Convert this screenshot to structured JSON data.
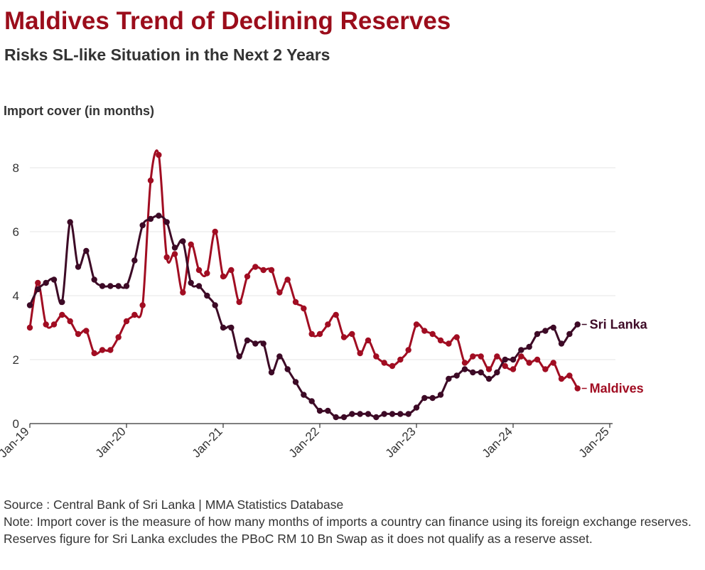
{
  "header": {
    "title": "Maldives Trend of Declining Reserves",
    "subtitle": "Risks SL-like Situation in the Next 2 Years"
  },
  "footer": {
    "source": "Source : Central Bank of Sri Lanka | MMA Statistics Database",
    "note": "Note: Import cover is the measure of how many months of imports a country can finance using its foreign exchange reserves.",
    "note2": "Reserves figure for Sri Lanka excludes the PBoC RM 10 Bn Swap as it does not qualify as a reserve asset."
  },
  "colors": {
    "sri_lanka": "#3d0a26",
    "maldives": "#a10d22",
    "grid": "#e6e6e6",
    "text": "#333333"
  },
  "chart_data": {
    "type": "line",
    "title": "Maldives Trend of Declining Reserves",
    "subtitle": "Risks SL-like Situation in the Next 2 Years",
    "ylabel": "Import cover (in months)",
    "xlabel": "",
    "x_start": "Jan-19",
    "x_frequency": "monthly",
    "xticks": [
      "Jan-19",
      "Jan-20",
      "Jan-21",
      "Jan-22",
      "Jan-23",
      "Jan-24",
      "Jan-25"
    ],
    "yticks": [
      0,
      2,
      4,
      6,
      8
    ],
    "ylim": [
      0,
      9
    ],
    "grid": true,
    "legend": "direct labels at line ends",
    "series": [
      {
        "name": "Sri Lanka",
        "values": [
          3.7,
          4.2,
          4.4,
          4.5,
          3.8,
          6.3,
          4.9,
          5.4,
          4.5,
          4.3,
          4.3,
          4.3,
          4.3,
          5.1,
          6.2,
          6.4,
          6.5,
          6.3,
          5.5,
          5.7,
          4.4,
          4.3,
          4.0,
          3.7,
          3.0,
          3.0,
          2.1,
          2.6,
          2.5,
          2.5,
          1.6,
          2.1,
          1.7,
          1.3,
          0.9,
          0.7,
          0.4,
          0.4,
          0.2,
          0.2,
          0.3,
          0.3,
          0.3,
          0.2,
          0.3,
          0.3,
          0.3,
          0.3,
          0.5,
          0.8,
          0.8,
          0.9,
          1.4,
          1.5,
          1.7,
          1.6,
          1.6,
          1.4,
          1.6,
          2.0,
          2.0,
          2.3,
          2.4,
          2.8,
          2.9,
          3.0,
          2.5,
          2.8,
          3.1
        ]
      },
      {
        "name": "Maldives",
        "values": [
          3.0,
          4.4,
          3.1,
          3.1,
          3.4,
          3.2,
          2.8,
          2.9,
          2.2,
          2.3,
          2.3,
          2.7,
          3.2,
          3.4,
          3.7,
          7.6,
          8.4,
          5.2,
          5.3,
          4.1,
          5.6,
          4.8,
          4.7,
          6.0,
          4.6,
          4.8,
          3.8,
          4.6,
          4.9,
          4.8,
          4.8,
          4.1,
          4.5,
          3.8,
          3.6,
          2.8,
          2.8,
          3.1,
          3.4,
          2.7,
          2.8,
          2.2,
          2.6,
          2.1,
          1.9,
          1.8,
          2.0,
          2.3,
          3.1,
          2.9,
          2.8,
          2.6,
          2.5,
          2.7,
          1.9,
          2.1,
          2.1,
          1.7,
          2.1,
          1.8,
          1.7,
          2.1,
          1.9,
          2.0,
          1.7,
          1.9,
          1.4,
          1.5,
          1.1
        ]
      }
    ]
  }
}
